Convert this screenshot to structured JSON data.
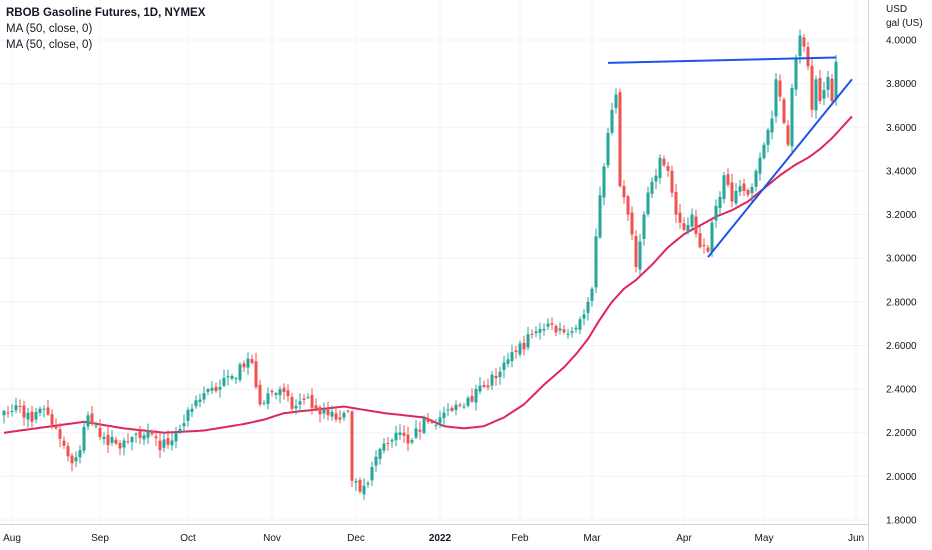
{
  "legend": {
    "title": "RBOB Gasoline Futures, 1D, NYMEX",
    "ma1": "MA (50, close, 0)",
    "ma2": "MA (50, close, 0)"
  },
  "colors": {
    "up": "#26a69a",
    "down": "#ef5350",
    "ma": "#e0245e",
    "trendline": "#1e53e5",
    "grid": "#f0f3fa",
    "axis_line": "#d1d4dc"
  },
  "chart_data": {
    "type": "candlestick",
    "title": "RBOB Gasoline Futures, 1D, NYMEX",
    "y_axis_unit": [
      "USD",
      "gal (US)"
    ],
    "ylim": [
      1.75,
      4.1
    ],
    "y_ticks": [
      "4.0000",
      "3.8000",
      "3.6000",
      "3.4000",
      "3.2000",
      "3.0000",
      "2.8000",
      "2.6000",
      "2.4000",
      "2.2000",
      "2.0000",
      "1.8000"
    ],
    "x_ticks": [
      {
        "label": "Aug",
        "bold": false,
        "bar": 2
      },
      {
        "label": "Sep",
        "bold": false,
        "bar": 24
      },
      {
        "label": "Oct",
        "bold": false,
        "bar": 46
      },
      {
        "label": "Nov",
        "bold": false,
        "bar": 67
      },
      {
        "label": "Dec",
        "bold": false,
        "bar": 88
      },
      {
        "label": "2022",
        "bold": true,
        "bar": 109
      },
      {
        "label": "Feb",
        "bold": false,
        "bar": 129
      },
      {
        "label": "Mar",
        "bold": false,
        "bar": 147
      },
      {
        "label": "Apr",
        "bold": false,
        "bar": 170
      },
      {
        "label": "May",
        "bold": false,
        "bar": 190
      },
      {
        "label": "Jun",
        "bold": false,
        "bar": 213
      }
    ],
    "bar_count": 216,
    "close_anchors": [
      [
        0,
        2.3
      ],
      [
        4,
        2.32
      ],
      [
        7,
        2.25
      ],
      [
        10,
        2.31
      ],
      [
        13,
        2.22
      ],
      [
        17,
        2.06
      ],
      [
        19,
        2.12
      ],
      [
        21,
        2.28
      ],
      [
        24,
        2.18
      ],
      [
        28,
        2.15
      ],
      [
        32,
        2.18
      ],
      [
        36,
        2.21
      ],
      [
        39,
        2.12
      ],
      [
        43,
        2.2
      ],
      [
        47,
        2.31
      ],
      [
        51,
        2.4
      ],
      [
        54,
        2.41
      ],
      [
        57,
        2.46
      ],
      [
        60,
        2.5
      ],
      [
        62,
        2.52
      ],
      [
        64,
        2.33
      ],
      [
        66,
        2.38
      ],
      [
        69,
        2.4
      ],
      [
        72,
        2.31
      ],
      [
        75,
        2.35
      ],
      [
        78,
        2.31
      ],
      [
        81,
        2.28
      ],
      [
        84,
        2.26
      ],
      [
        86,
        2.3
      ],
      [
        87,
        1.98
      ],
      [
        89,
        1.93
      ],
      [
        91,
        1.97
      ],
      [
        93,
        2.09
      ],
      [
        95,
        2.15
      ],
      [
        98,
        2.2
      ],
      [
        101,
        2.15
      ],
      [
        103,
        2.22
      ],
      [
        106,
        2.25
      ],
      [
        109,
        2.27
      ],
      [
        112,
        2.3
      ],
      [
        116,
        2.36
      ],
      [
        120,
        2.41
      ],
      [
        124,
        2.48
      ],
      [
        128,
        2.57
      ],
      [
        132,
        2.65
      ],
      [
        136,
        2.7
      ],
      [
        140,
        2.66
      ],
      [
        144,
        2.72
      ],
      [
        146,
        2.8
      ],
      [
        147,
        2.86
      ],
      [
        148,
        3.1
      ],
      [
        150,
        3.42
      ],
      [
        152,
        3.68
      ],
      [
        153,
        3.75
      ],
      [
        154,
        3.33
      ],
      [
        156,
        3.2
      ],
      [
        158,
        2.96
      ],
      [
        160,
        3.2
      ],
      [
        162,
        3.35
      ],
      [
        164,
        3.46
      ],
      [
        166,
        3.4
      ],
      [
        167,
        3.3
      ],
      [
        168,
        3.2
      ],
      [
        170,
        3.13
      ],
      [
        172,
        3.2
      ],
      [
        174,
        3.05
      ],
      [
        176,
        3.03
      ],
      [
        178,
        3.24
      ],
      [
        180,
        3.38
      ],
      [
        182,
        3.26
      ],
      [
        184,
        3.33
      ],
      [
        186,
        3.29
      ],
      [
        188,
        3.4
      ],
      [
        190,
        3.52
      ],
      [
        192,
        3.64
      ],
      [
        193,
        3.82
      ],
      [
        195,
        3.62
      ],
      [
        196,
        3.52
      ],
      [
        197,
        3.78
      ],
      [
        198,
        3.92
      ],
      [
        199,
        4.02
      ],
      [
        200,
        3.97
      ],
      [
        201,
        3.88
      ],
      [
        202,
        3.68
      ],
      [
        203,
        3.82
      ],
      [
        204,
        3.72
      ],
      [
        205,
        3.77
      ],
      [
        206,
        3.83
      ],
      [
        207,
        3.72
      ],
      [
        208,
        3.9
      ]
    ],
    "ma50_anchors": [
      [
        0,
        2.2
      ],
      [
        8,
        2.22
      ],
      [
        20,
        2.25
      ],
      [
        30,
        2.22
      ],
      [
        40,
        2.2
      ],
      [
        50,
        2.21
      ],
      [
        60,
        2.24
      ],
      [
        65,
        2.26
      ],
      [
        70,
        2.29
      ],
      [
        80,
        2.31
      ],
      [
        85,
        2.32
      ],
      [
        95,
        2.29
      ],
      [
        105,
        2.27
      ],
      [
        110,
        2.23
      ],
      [
        115,
        2.22
      ],
      [
        120,
        2.23
      ],
      [
        125,
        2.27
      ],
      [
        130,
        2.33
      ],
      [
        135,
        2.42
      ],
      [
        140,
        2.5
      ],
      [
        143,
        2.56
      ],
      [
        146,
        2.63
      ],
      [
        149,
        2.72
      ],
      [
        152,
        2.8
      ],
      [
        155,
        2.86
      ],
      [
        158,
        2.9
      ],
      [
        162,
        2.97
      ],
      [
        166,
        3.05
      ],
      [
        170,
        3.11
      ],
      [
        174,
        3.15
      ],
      [
        178,
        3.19
      ],
      [
        182,
        3.22
      ],
      [
        186,
        3.26
      ],
      [
        190,
        3.32
      ],
      [
        194,
        3.38
      ],
      [
        198,
        3.43
      ],
      [
        201,
        3.46
      ],
      [
        204,
        3.5
      ],
      [
        207,
        3.55
      ],
      [
        210,
        3.61
      ],
      [
        212,
        3.65
      ]
    ],
    "trendlines": [
      {
        "name": "resistance",
        "from": [
          151,
          3.895
        ],
        "to": [
          208,
          3.92
        ]
      },
      {
        "name": "support",
        "from": [
          176,
          3.005
        ],
        "to": [
          212,
          3.82
        ]
      }
    ]
  }
}
